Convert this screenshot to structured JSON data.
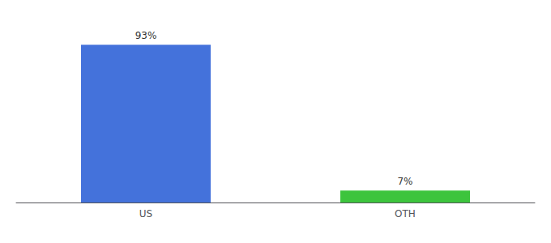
{
  "chart_data": {
    "type": "bar",
    "categories": [
      "US",
      "OTH"
    ],
    "values": [
      93,
      7
    ],
    "value_labels": [
      "93%",
      "7%"
    ],
    "colors": [
      "#4472db",
      "#3dc43d"
    ],
    "ylim": [
      0,
      105
    ],
    "grid": false,
    "data_labels": true,
    "tick_labels": "x"
  }
}
